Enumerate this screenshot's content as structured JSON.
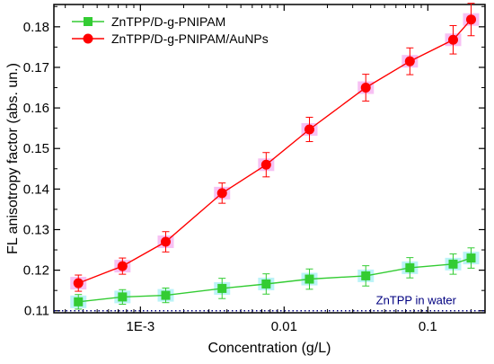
{
  "chart_data": {
    "type": "line",
    "xlabel": "Concentration (g/L)",
    "ylabel": "FL anisotropy factor (abs. un.)",
    "xscale": "log",
    "xlim": [
      0.00025,
      0.25
    ],
    "ylim": [
      0.1095,
      0.1855
    ],
    "x_ticks": [
      {
        "value": 0.001,
        "label": "1E-3"
      },
      {
        "value": 0.01,
        "label": "0.01"
      },
      {
        "value": 0.1,
        "label": "0.1"
      }
    ],
    "y_ticks": [
      {
        "value": 0.11,
        "label": "0.11"
      },
      {
        "value": 0.12,
        "label": "0.12"
      },
      {
        "value": 0.13,
        "label": "0.13"
      },
      {
        "value": 0.14,
        "label": "0.14"
      },
      {
        "value": 0.15,
        "label": "0.15"
      },
      {
        "value": 0.16,
        "label": "0.16"
      },
      {
        "value": 0.17,
        "label": "0.17"
      },
      {
        "value": 0.18,
        "label": "0.18"
      }
    ],
    "grid": false,
    "legend_position": "top-left",
    "series": [
      {
        "name": "ZnTPP/D-g-PNIPAM",
        "color": "#33cc33",
        "marker": "square",
        "x": [
          0.00037,
          0.00075,
          0.0015,
          0.0037,
          0.0075,
          0.015,
          0.037,
          0.075,
          0.15,
          0.2
        ],
        "y": [
          0.1122,
          0.1134,
          0.1138,
          0.1155,
          0.1166,
          0.1178,
          0.1186,
          0.1206,
          0.1215,
          0.123
        ],
        "error": [
          0.0018,
          0.0018,
          0.0018,
          0.0025,
          0.0025,
          0.0025,
          0.0025,
          0.0025,
          0.0025,
          0.0025
        ]
      },
      {
        "name": "ZnTPP/D-g-PNIPAM/AuNPs",
        "color": "#ff0000",
        "marker": "circle",
        "x": [
          0.00037,
          0.00075,
          0.0015,
          0.0037,
          0.0075,
          0.015,
          0.037,
          0.075,
          0.15,
          0.2
        ],
        "y": [
          0.1168,
          0.121,
          0.127,
          0.139,
          0.146,
          0.1547,
          0.165,
          0.1715,
          0.1768,
          0.1818
        ],
        "error": [
          0.002,
          0.002,
          0.0025,
          0.0025,
          0.003,
          0.003,
          0.0033,
          0.0033,
          0.0035,
          0.004
        ]
      }
    ],
    "reference_line": {
      "label": "ZnTPP in water",
      "y": 0.11,
      "color": "#000080",
      "style": "dotted"
    }
  }
}
